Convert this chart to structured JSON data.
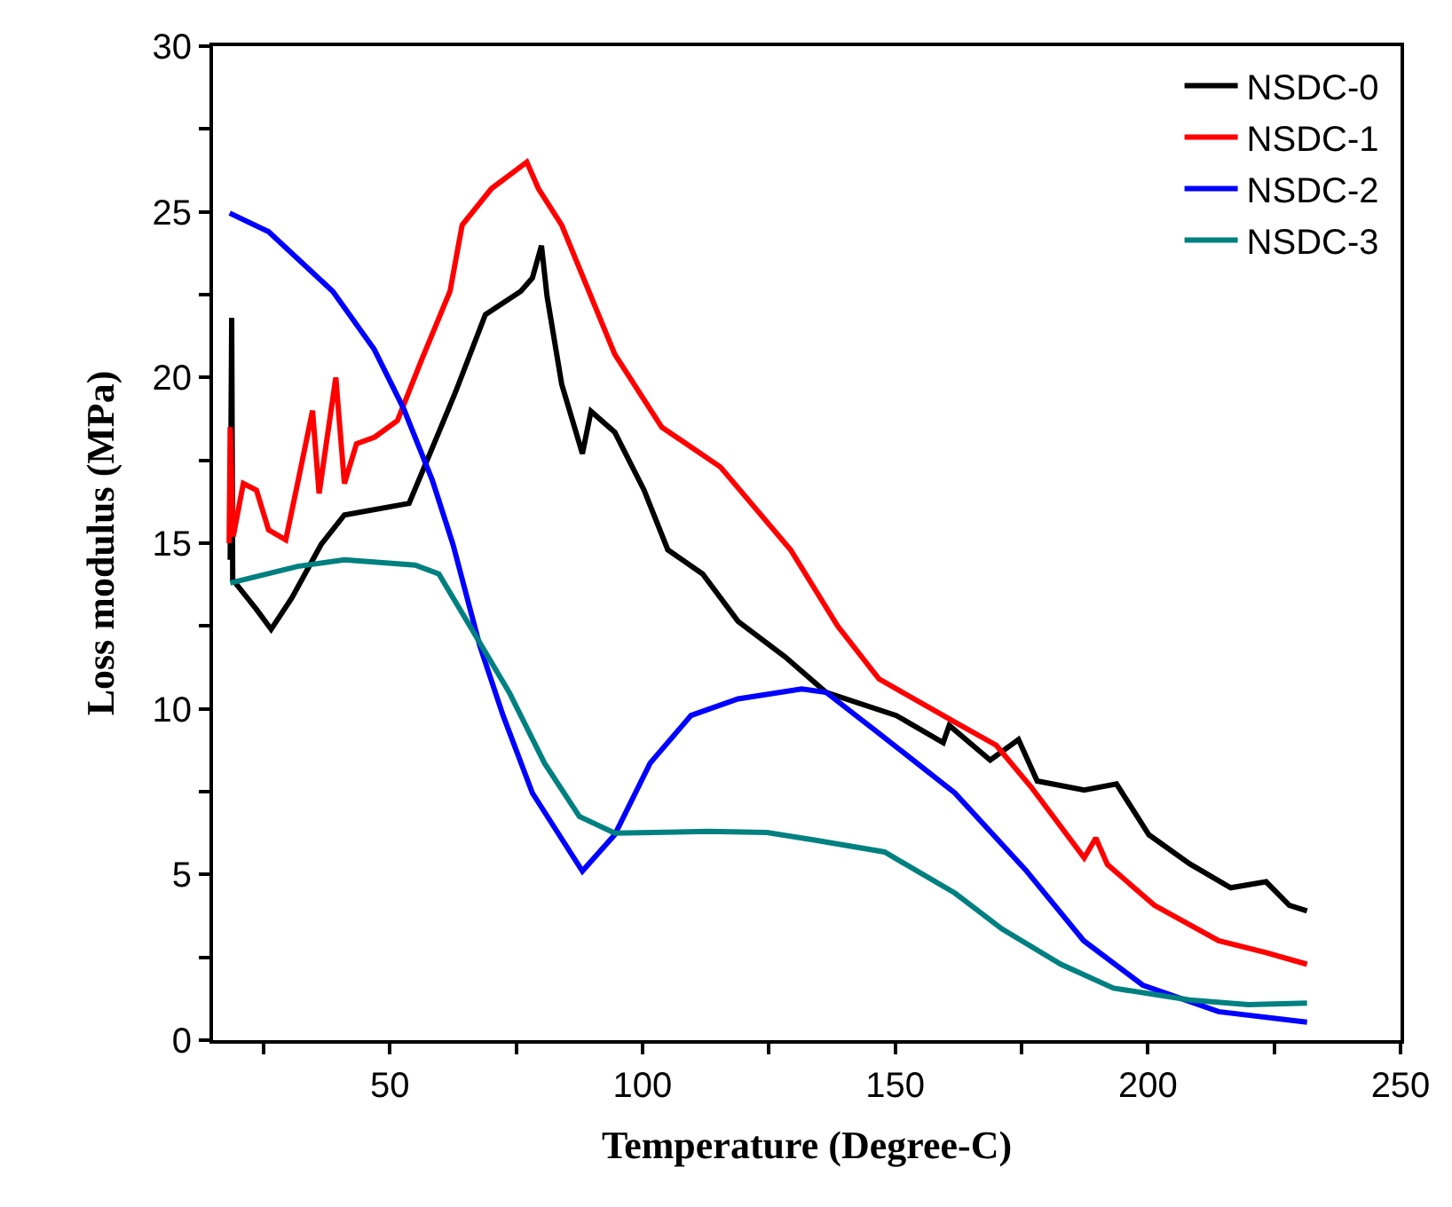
{
  "chart_data": {
    "type": "line",
    "xlabel": "Temperature (Degree-C)",
    "ylabel": "Loss modulus (MPa)",
    "xlim": [
      15,
      250
    ],
    "ylim": [
      0,
      30
    ],
    "xticks": [
      {
        "value": 25,
        "label": null
      },
      50,
      {
        "value": 75,
        "label": null
      },
      100,
      {
        "value": 125,
        "label": null
      },
      150,
      {
        "value": 175,
        "label": null
      },
      200,
      {
        "value": 225,
        "label": null
      },
      250
    ],
    "yticks": [
      0,
      {
        "value": 2.5,
        "label": null
      },
      5,
      {
        "value": 7.5,
        "label": null
      },
      10,
      {
        "value": 12.5,
        "label": null
      },
      15,
      {
        "value": 17.5,
        "label": null
      },
      20,
      {
        "value": 22.5,
        "label": null
      },
      25,
      {
        "value": 27.5,
        "label": null
      },
      30
    ],
    "legend": "top right",
    "marker": "none",
    "line_style": "solid",
    "series": [
      {
        "name": "NSDC-0",
        "color": "#000000",
        "x": [
          18.4,
          18.7,
          18.9,
          23.6,
          26.5,
          30.6,
          36.4,
          41,
          53.8,
          59.7,
          63.1,
          68.9,
          75.9,
          78.2,
          80,
          81.1,
          84,
          88.1,
          89.8,
          94.5,
          100.3,
          105,
          111.9,
          118.9,
          128.2,
          136.3,
          150.2,
          159.5,
          160.7,
          168.8,
          174.4,
          178.1,
          187.4,
          193.8,
          200.2,
          208.3,
          216.4,
          223.4,
          228,
          231.5
        ],
        "values": [
          14.5,
          21.8,
          13.9,
          13.0,
          12.4,
          13.35,
          14.96,
          15.85,
          16.2,
          18.35,
          19.6,
          21.9,
          22.6,
          23.0,
          23.98,
          22.46,
          19.8,
          17.7,
          18.98,
          18.35,
          16.6,
          14.8,
          14.07,
          12.64,
          11.57,
          10.5,
          9.8,
          8.98,
          9.5,
          8.45,
          9.07,
          7.82,
          7.55,
          7.73,
          6.2,
          5.32,
          4.6,
          4.78,
          4.07,
          3.9
        ]
      },
      {
        "name": "NSDC-1",
        "color": "#ff0000",
        "x": [
          18.2,
          18.4,
          19,
          21,
          23.6,
          26,
          29.4,
          32,
          34.7,
          36,
          39.3,
          41,
          43.4,
          47,
          51.5,
          56.2,
          61.9,
          64.3,
          70.1,
          77.1,
          79.4,
          84,
          94.5,
          103.8,
          115.4,
          129.3,
          138.6,
          146.8,
          161.8,
          170,
          176.9,
          187.4,
          189.7,
          192,
          201.3,
          214,
          223.4,
          231.5
        ],
        "values": [
          15.0,
          18.5,
          15.2,
          16.8,
          16.6,
          15.4,
          15.1,
          17.0,
          19.0,
          16.5,
          20.0,
          16.8,
          18.0,
          18.2,
          18.7,
          20.5,
          22.6,
          24.6,
          25.7,
          26.5,
          25.7,
          24.6,
          20.7,
          18.5,
          17.3,
          14.8,
          12.5,
          10.9,
          9.6,
          8.9,
          7.64,
          5.5,
          6.1,
          5.3,
          4.07,
          3.0,
          2.64,
          2.29
        ]
      },
      {
        "name": "NSDC-2",
        "color": "#0000ff",
        "x": [
          18.3,
          26,
          38.7,
          46.9,
          52.7,
          58.4,
          62.5,
          67.8,
          72.4,
          78.2,
          88.1,
          94.5,
          101.5,
          109.6,
          118.9,
          131.5,
          136.3,
          146.8,
          161.8,
          175.8,
          187.3,
          199,
          214,
          231.5
        ],
        "values": [
          24.96,
          24.4,
          22.6,
          20.85,
          19.07,
          16.9,
          14.96,
          11.9,
          9.8,
          7.46,
          5.1,
          6.2,
          8.36,
          9.8,
          10.3,
          10.6,
          10.5,
          9.26,
          7.46,
          5.14,
          3.0,
          1.66,
          0.86,
          0.54
        ]
      },
      {
        "name": "NSDC-3",
        "color": "#008080",
        "x": [
          18.4,
          31.8,
          41,
          55,
          59.7,
          66.6,
          73.6,
          80.6,
          87.5,
          94.5,
          113,
          124.6,
          134,
          147.9,
          161.8,
          171.1,
          182.8,
          193.2,
          208.3,
          219.9,
          231.5
        ],
        "values": [
          13.8,
          14.3,
          14.5,
          14.34,
          14.07,
          12.3,
          10.5,
          8.36,
          6.75,
          6.25,
          6.3,
          6.27,
          6.04,
          5.68,
          4.44,
          3.36,
          2.29,
          1.57,
          1.21,
          1.07,
          1.12
        ]
      }
    ]
  }
}
